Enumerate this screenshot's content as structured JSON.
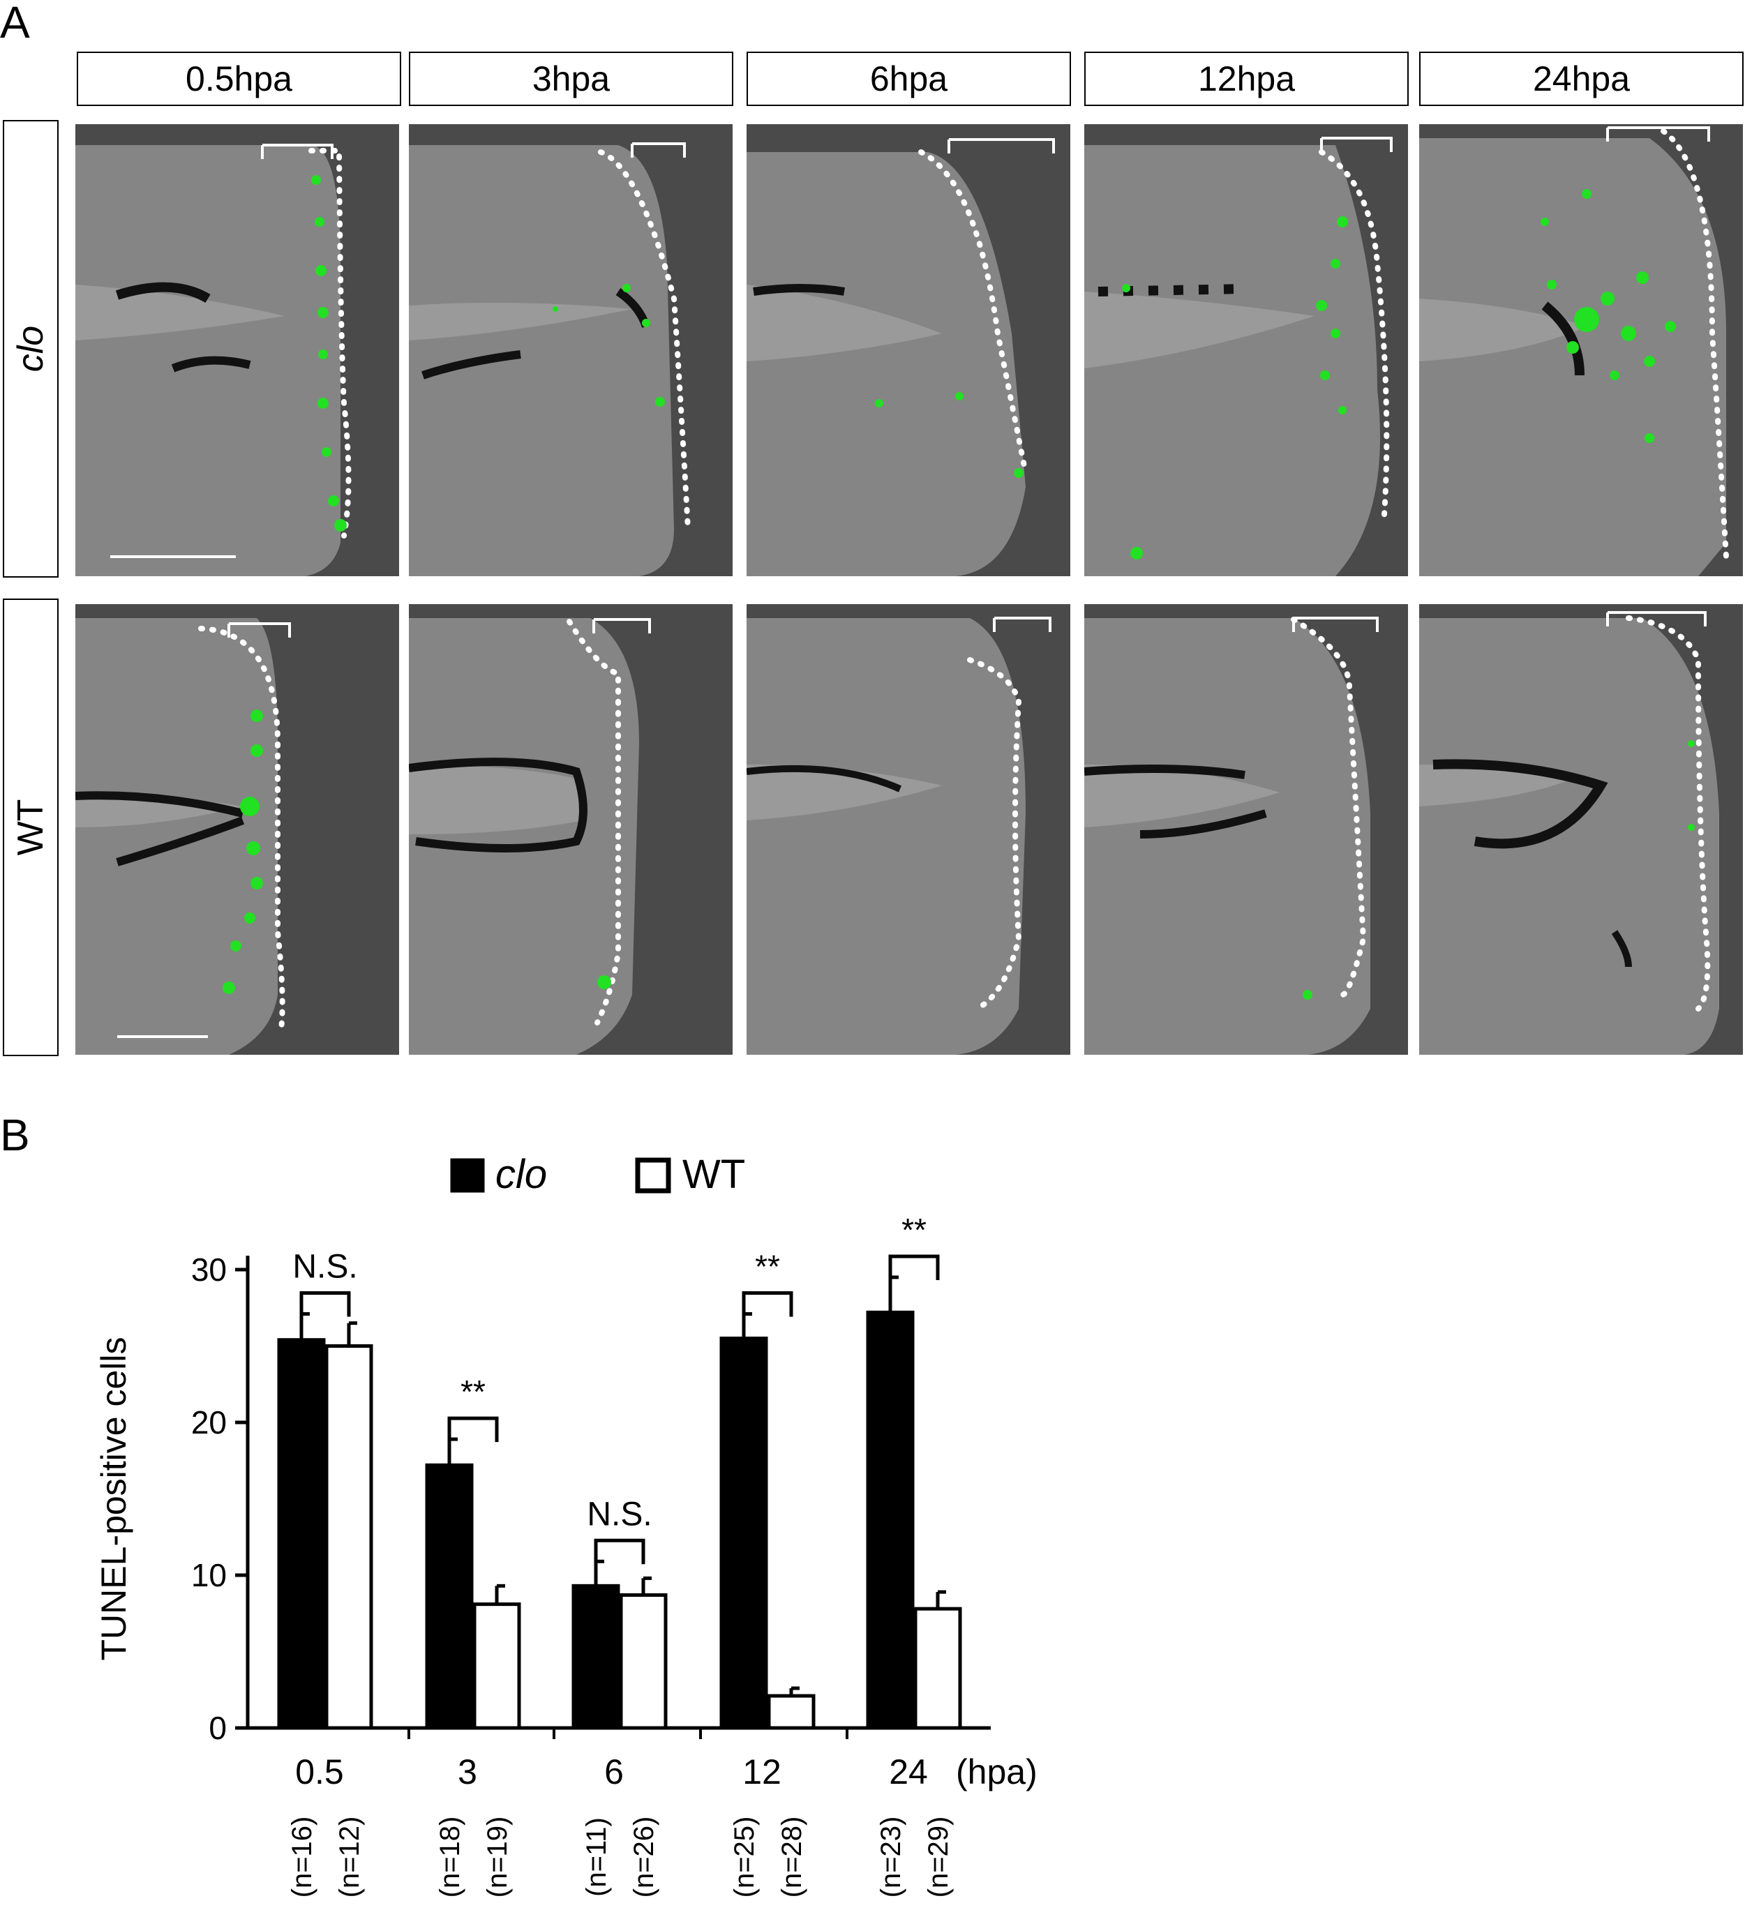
{
  "panels": {
    "a_label": "A",
    "b_label": "B"
  },
  "figure_a": {
    "columns": [
      "0.5hpa",
      "3hpa",
      "6hpa",
      "12hpa",
      "24hpa"
    ],
    "rows": [
      "clo",
      "WT"
    ]
  },
  "chart_data": {
    "type": "bar",
    "ylabel": "TUNEL-positive cells",
    "ylim": [
      0,
      30
    ],
    "yticks": [
      0,
      10,
      20,
      30
    ],
    "categories": [
      "0.5",
      "3",
      "6",
      "12",
      "24"
    ],
    "x_unit": "(hpa)",
    "legend": [
      "clo",
      "WT"
    ],
    "legend_position": "top",
    "series": [
      {
        "name": "clo",
        "fill": "#000000",
        "values": [
          25.4,
          17.2,
          9.3,
          25.5,
          27.2
        ],
        "errors": [
          1.7,
          1.7,
          1.6,
          1.6,
          2.3
        ]
      },
      {
        "name": "WT",
        "fill": "#ffffff",
        "values": [
          25.0,
          8.1,
          8.7,
          2.1,
          7.8
        ],
        "errors": [
          1.5,
          1.2,
          1.1,
          0.5,
          1.1
        ]
      }
    ],
    "significance": [
      "N.S.",
      "**",
      "N.S.",
      "**",
      "**"
    ],
    "n_labels": [
      [
        "(n=16)",
        "(n=12)"
      ],
      [
        "(n=18)",
        "(n=19)"
      ],
      [
        "(n=11)",
        "(n=26)"
      ],
      [
        "(n=25)",
        "(n=28)"
      ],
      [
        "(n=23)",
        "(n=29)"
      ]
    ]
  }
}
